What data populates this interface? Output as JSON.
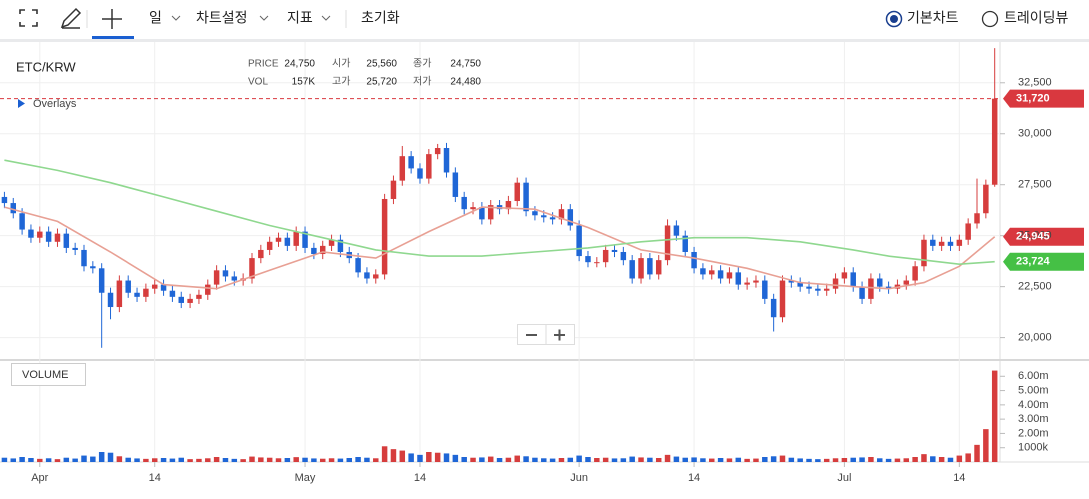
{
  "toolbar": {
    "items": [
      "일",
      "차트설정",
      "지표",
      "초기화"
    ],
    "views": [
      "기본차트",
      "트레이딩뷰"
    ]
  },
  "chart_data": {
    "type": "candlestick",
    "symbol": "ETC/KRW",
    "overlays_label": "Overlays",
    "info": [
      {
        "label": "PRICE",
        "value": "24,750"
      },
      {
        "label": "시가",
        "value": "25,560"
      },
      {
        "label": "종가",
        "value": "24,750"
      },
      {
        "label": "VOL",
        "value": "157K"
      },
      {
        "label": "고가",
        "value": "25,720"
      },
      {
        "label": "저가",
        "value": "24,480"
      }
    ],
    "up_color": "#d63d3d",
    "down_color": "#1f66d6",
    "open": [
      26900,
      26600,
      26100,
      25300,
      24900,
      25200,
      24700,
      25100,
      24400,
      24300,
      23500,
      23400,
      22200,
      21500,
      22800,
      22200,
      22000,
      22400,
      22600,
      22300,
      22000,
      21700,
      21900,
      22100,
      22600,
      23300,
      23000,
      22800,
      22900,
      23900,
      24300,
      24700,
      24900,
      24500,
      25200,
      24400,
      24100,
      24500,
      24800,
      24200,
      23900,
      23200,
      22900,
      23100,
      26800,
      27700,
      28900,
      28300,
      27800,
      29000,
      29300,
      28100,
      26900,
      26300,
      26400,
      25800,
      26500,
      26300,
      26700,
      27600,
      26200,
      26000,
      25900,
      25800,
      26300,
      25500,
      24000,
      23700,
      23700,
      24300,
      24200,
      23800,
      22900,
      23900,
      23100,
      23800,
      25500,
      25000,
      24200,
      23400,
      23100,
      23300,
      22900,
      23200,
      22600,
      22700,
      22800,
      21900,
      21000,
      22800,
      22700,
      22500,
      22400,
      22300,
      22400,
      22900,
      23200,
      22500,
      21900,
      22900,
      22500,
      22400,
      22600,
      22800,
      23500,
      24800,
      24500,
      24700,
      24500,
      24800,
      25600,
      26100,
      27500
    ],
    "high": [
      27150,
      26850,
      26350,
      25550,
      25450,
      25450,
      25350,
      25350,
      24650,
      24550,
      23750,
      23650,
      22450,
      23050,
      23050,
      22450,
      22650,
      22850,
      22850,
      22550,
      22250,
      22150,
      22350,
      22850,
      23550,
      23550,
      23250,
      23150,
      24150,
      24550,
      24950,
      25150,
      25150,
      25450,
      25450,
      24650,
      24750,
      25050,
      25050,
      24450,
      24150,
      23450,
      23350,
      27050,
      27950,
      29400,
      29150,
      28550,
      29250,
      29500,
      29550,
      28350,
      27150,
      26650,
      26650,
      26750,
      26750,
      26950,
      27850,
      27850,
      26450,
      26250,
      26150,
      26550,
      26550,
      25750,
      24250,
      23950,
      24550,
      24550,
      24450,
      24050,
      24150,
      24150,
      24050,
      25800,
      25750,
      25250,
      24450,
      23650,
      23550,
      23550,
      23450,
      23450,
      22950,
      23050,
      23050,
      22150,
      23050,
      23050,
      22950,
      22750,
      22650,
      22650,
      23150,
      23450,
      23450,
      22750,
      23150,
      23150,
      22750,
      22850,
      23050,
      23750,
      25050,
      25050,
      24950,
      24950,
      25050,
      25850,
      27800,
      27750,
      34200
    ],
    "low": [
      26350,
      25850,
      25050,
      24650,
      24650,
      24450,
      24450,
      24150,
      24050,
      23250,
      23150,
      19500,
      20900,
      21250,
      21950,
      21750,
      21750,
      22150,
      22050,
      21750,
      21450,
      21450,
      21650,
      21850,
      22350,
      22750,
      22550,
      22550,
      22650,
      23650,
      24050,
      24450,
      24250,
      24250,
      24150,
      23850,
      23850,
      24250,
      23950,
      23650,
      22950,
      22650,
      22650,
      22850,
      26550,
      27450,
      28050,
      27550,
      27550,
      28750,
      27850,
      26650,
      26050,
      26050,
      25550,
      25550,
      26050,
      26050,
      26450,
      25950,
      25750,
      25650,
      25550,
      25550,
      25250,
      23750,
      23450,
      23450,
      23450,
      23950,
      23550,
      22650,
      22650,
      22850,
      22850,
      23550,
      24750,
      23950,
      23150,
      22850,
      22850,
      22650,
      22650,
      22350,
      22350,
      22450,
      21650,
      20300,
      20750,
      22450,
      22250,
      22150,
      22050,
      22050,
      22150,
      22650,
      22250,
      21650,
      21650,
      22250,
      22150,
      22150,
      22350,
      22550,
      23250,
      24250,
      24250,
      24250,
      24250,
      24550,
      25350,
      25850,
      27400
    ],
    "close": [
      26600,
      26100,
      25300,
      24900,
      25200,
      24700,
      25100,
      24400,
      24300,
      23500,
      23400,
      22200,
      21500,
      22800,
      22200,
      22000,
      22400,
      22600,
      22300,
      22000,
      21700,
      21900,
      22100,
      22600,
      23300,
      23000,
      22800,
      22900,
      23900,
      24300,
      24700,
      24900,
      24500,
      25200,
      24400,
      24100,
      24500,
      24800,
      24200,
      23900,
      23200,
      22900,
      23100,
      26800,
      27700,
      28900,
      28300,
      27800,
      29000,
      29300,
      28100,
      26900,
      26300,
      26400,
      25800,
      26500,
      26300,
      26700,
      27600,
      26200,
      26000,
      25900,
      25800,
      26300,
      25500,
      24000,
      23700,
      23700,
      24300,
      24200,
      23800,
      22900,
      23900,
      23100,
      23800,
      25500,
      25000,
      24200,
      23400,
      23100,
      23300,
      22900,
      23200,
      22600,
      22700,
      22800,
      21900,
      21000,
      22800,
      22700,
      22500,
      22400,
      22300,
      22400,
      22900,
      23200,
      22500,
      21900,
      22900,
      22500,
      22400,
      22600,
      22800,
      23500,
      24800,
      24500,
      24700,
      24500,
      24800,
      25600,
      26100,
      27500,
      31720
    ],
    "xlim": [
      -0.5,
      112.6
    ],
    "xticks": [
      {
        "value": 4,
        "label": "Apr"
      },
      {
        "value": 17,
        "label": "14"
      },
      {
        "value": 34,
        "label": "May"
      },
      {
        "value": 47,
        "label": "14"
      },
      {
        "value": 65,
        "label": "Jun"
      },
      {
        "value": 78,
        "label": "14"
      },
      {
        "value": 95,
        "label": "Jul"
      },
      {
        "value": 108,
        "label": "14"
      }
    ],
    "ylim": [
      19000,
      34500
    ],
    "yticks": [
      {
        "value": 20000,
        "label": "20,000"
      },
      {
        "value": 22500,
        "label": "22,500"
      },
      {
        "value": 25000,
        "label": "25,000"
      },
      {
        "value": 27500,
        "label": "27,500"
      },
      {
        "value": 30000,
        "label": "30,000"
      },
      {
        "value": 32500,
        "label": "32,500"
      }
    ],
    "grid": true,
    "lines": [
      {
        "color": "#e8a094",
        "x": [
          0,
          6,
          12,
          18,
          24,
          30,
          36,
          42,
          48,
          54,
          60,
          66,
          72,
          78,
          84,
          90,
          96,
          100,
          104,
          108,
          112
        ],
        "values": [
          26400,
          25700,
          24200,
          22600,
          22400,
          23300,
          24200,
          23900,
          25200,
          26400,
          26300,
          25400,
          24300,
          23900,
          23400,
          22700,
          22500,
          22400,
          22700,
          23500,
          24945
        ]
      },
      {
        "color": "#8fd88f",
        "x": [
          0,
          6,
          12,
          18,
          24,
          30,
          36,
          42,
          48,
          54,
          60,
          66,
          72,
          78,
          84,
          90,
          96,
          100,
          104,
          108,
          112
        ],
        "values": [
          28700,
          28200,
          27600,
          26900,
          26200,
          25500,
          24900,
          24300,
          24000,
          24000,
          24200,
          24400,
          24700,
          24900,
          24900,
          24700,
          24300,
          24000,
          23800,
          23600,
          23724
        ]
      }
    ],
    "price_tags": [
      {
        "value": 31720,
        "label": "31,720",
        "color": "#d9383f",
        "dashed": true
      },
      {
        "value": 24945,
        "label": "24,945",
        "color": "#d9383f",
        "dashed": false
      },
      {
        "value": 23724,
        "label": "23,724",
        "color": "#45c045",
        "dashed": false
      }
    ],
    "volume": {
      "title": "VOLUME",
      "values": [
        300000,
        250000,
        350000,
        280000,
        220000,
        260000,
        200000,
        300000,
        240000,
        450000,
        380000,
        700000,
        650000,
        400000,
        300000,
        250000,
        220000,
        260000,
        280000,
        240000,
        300000,
        200000,
        220000,
        260000,
        350000,
        280000,
        220000,
        200000,
        380000,
        320000,
        300000,
        260000,
        280000,
        340000,
        300000,
        250000,
        230000,
        260000,
        240000,
        280000,
        350000,
        300000,
        260000,
        1100000,
        900000,
        800000,
        600000,
        500000,
        700000,
        650000,
        600000,
        500000,
        350000,
        300000,
        320000,
        380000,
        280000,
        300000,
        450000,
        400000,
        300000,
        260000,
        240000,
        280000,
        300000,
        450000,
        350000,
        280000,
        300000,
        250000,
        260000,
        380000,
        320000,
        300000,
        280000,
        500000,
        380000,
        300000,
        320000,
        260000,
        240000,
        280000,
        250000,
        300000,
        220000,
        240000,
        350000,
        400000,
        450000,
        300000,
        250000,
        220000,
        200000,
        220000,
        260000,
        280000,
        300000,
        320000,
        350000,
        260000,
        220000,
        240000,
        260000,
        350000,
        550000,
        400000,
        350000,
        300000,
        450000,
        600000,
        1200000,
        2300000,
        6400000
      ],
      "ylim": [
        0,
        7000000
      ],
      "yticks": [
        {
          "value": 1000000,
          "label": "1000k"
        },
        {
          "value": 2000000,
          "label": "2.00m"
        },
        {
          "value": 3000000,
          "label": "3.00m"
        },
        {
          "value": 4000000,
          "label": "4.00m"
        },
        {
          "value": 5000000,
          "label": "5.00m"
        },
        {
          "value": 6000000,
          "label": "6.00m"
        }
      ]
    }
  }
}
